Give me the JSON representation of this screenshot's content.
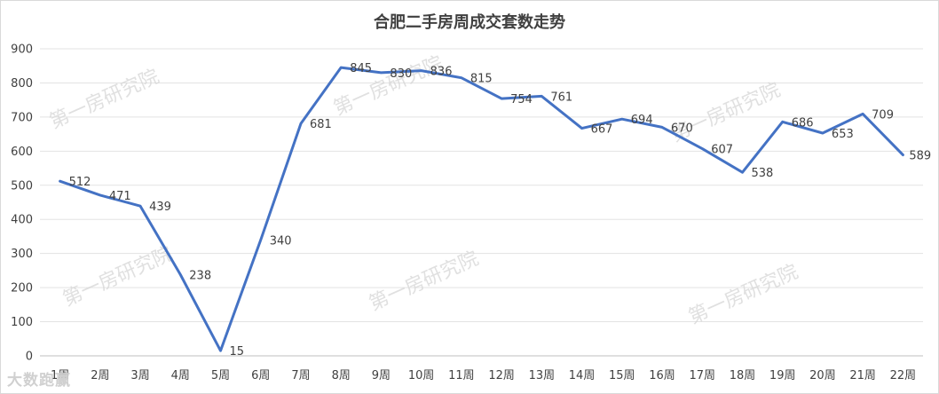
{
  "chart_data": {
    "type": "line",
    "title": "合肥二手房周成交套数走势",
    "categories": [
      "1周",
      "2周",
      "3周",
      "4周",
      "5周",
      "6周",
      "7周",
      "8周",
      "9周",
      "10周",
      "11周",
      "12周",
      "13周",
      "14周",
      "15周",
      "16周",
      "17周",
      "18周",
      "19周",
      "20周",
      "21周",
      "22周"
    ],
    "series": [
      {
        "values": [
          512,
          471,
          439,
          238,
          15,
          340,
          681,
          845,
          830,
          836,
          815,
          754,
          761,
          667,
          694,
          670,
          607,
          538,
          686,
          653,
          709,
          589
        ]
      }
    ],
    "ylim": [
      0,
      900
    ],
    "yticks": [
      0,
      100,
      200,
      300,
      400,
      500,
      600,
      700,
      800,
      900
    ],
    "grid": true,
    "line_color": "#4472c4"
  },
  "watermark": "第一房研究院",
  "logo_text": "大数跑赢"
}
